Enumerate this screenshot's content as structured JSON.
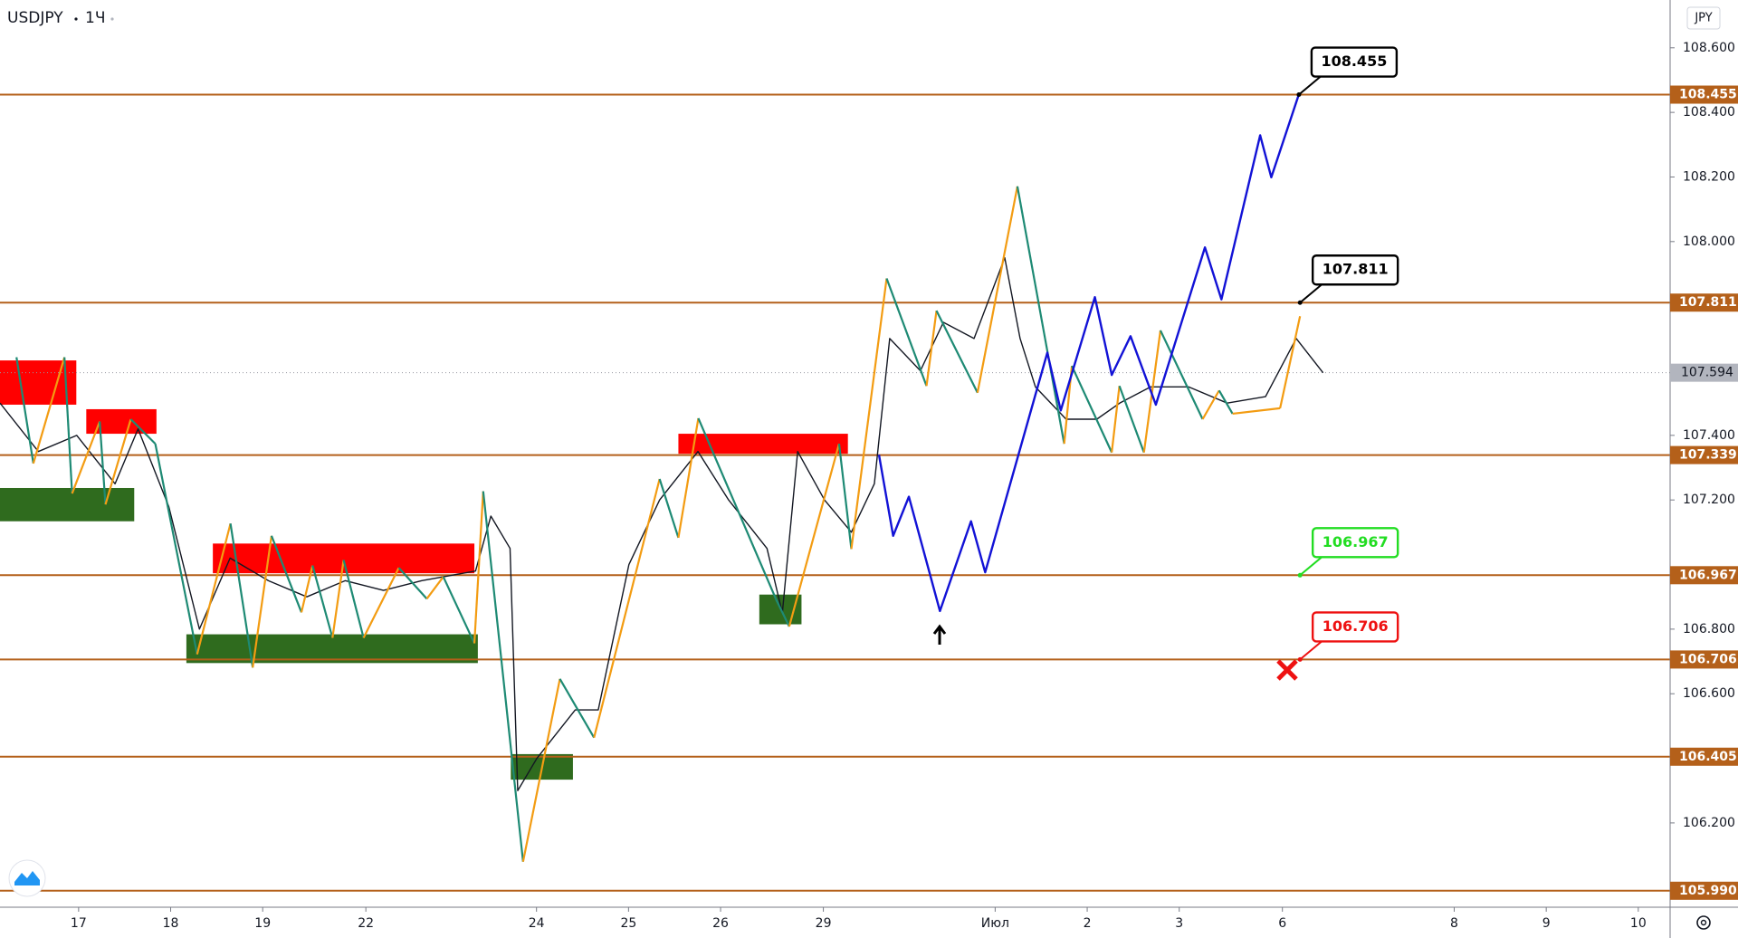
{
  "chart_data": {
    "type": "line",
    "title": "USDJPY",
    "interval": "1Ч",
    "currency": "JPY",
    "xlim": [
      0,
      435.5
    ],
    "ylim": [
      105.939,
      108.748
    ],
    "yticks": [
      {
        "value": 108.6,
        "label": "108.600"
      },
      {
        "value": 108.4,
        "label": "108.400"
      },
      {
        "value": 108.2,
        "label": "108.200"
      },
      {
        "value": 108.0,
        "label": "108.000"
      },
      {
        "value": 107.4,
        "label": "107.400"
      },
      {
        "value": 107.2,
        "label": "107.200"
      },
      {
        "value": 106.8,
        "label": "106.800"
      },
      {
        "value": 106.6,
        "label": "106.600"
      },
      {
        "value": 106.2,
        "label": "106.200"
      }
    ],
    "xticks": [
      {
        "value": 20.5,
        "label": "17"
      },
      {
        "value": 44.5,
        "label": "18"
      },
      {
        "value": 68.5,
        "label": "19"
      },
      {
        "value": 95.4,
        "label": "22"
      },
      {
        "value": 139.9,
        "label": "24"
      },
      {
        "value": 163.9,
        "label": "25"
      },
      {
        "value": 187.9,
        "label": "26"
      },
      {
        "value": 214.7,
        "label": "29"
      },
      {
        "value": 259.5,
        "label": "Июл"
      },
      {
        "value": 283.5,
        "label": "2"
      },
      {
        "value": 307.5,
        "label": "3"
      },
      {
        "value": 334.4,
        "label": "6"
      },
      {
        "value": 379.2,
        "label": "8"
      },
      {
        "value": 403.2,
        "label": "9"
      },
      {
        "value": 427.2,
        "label": "10"
      }
    ],
    "series": [
      {
        "color": "#131722",
        "x": [
          0,
          10,
          20,
          30,
          36,
          44,
          52,
          60,
          70,
          80,
          90,
          100,
          110,
          124,
          128,
          133,
          135,
          140,
          150,
          156,
          164,
          172,
          182,
          190,
          200,
          204,
          208,
          215,
          222,
          228,
          232,
          240,
          246,
          254,
          262,
          266,
          270,
          278,
          286,
          292,
          300,
          310,
          320,
          330,
          338,
          345
        ],
        "values": [
          107.5,
          107.35,
          107.4,
          107.25,
          107.42,
          107.18,
          106.8,
          107.02,
          106.95,
          106.9,
          106.95,
          106.92,
          106.95,
          106.98,
          107.15,
          107.05,
          106.3,
          106.4,
          106.55,
          106.55,
          107.0,
          107.2,
          107.35,
          107.2,
          107.05,
          106.85,
          107.35,
          107.2,
          107.1,
          107.25,
          107.7,
          107.6,
          107.75,
          107.7,
          107.95,
          107.7,
          107.55,
          107.45,
          107.45,
          107.5,
          107.55,
          107.55,
          107.5,
          107.52,
          107.7,
          107.594
        ]
      }
    ],
    "zigzag": {
      "up_color": "#f39c12",
      "down_color": "#1e8a74",
      "x": [
        4.3,
        8.7,
        16.8,
        18.8,
        26.0,
        27.5,
        34.1,
        40.5,
        51.4,
        60.1,
        65.9,
        70.8,
        78.6,
        81.5,
        86.7,
        89.6,
        94.8,
        104.0,
        111.3,
        115.6,
        123.7,
        126.0,
        136.4,
        146.0,
        154.9,
        172.0,
        176.9,
        182.1,
        202.3,
        205.8,
        218.8,
        222.0,
        231.2,
        241.6,
        244.2,
        254.9,
        265.3,
        277.5,
        279.5,
        289.9,
        291.9,
        298.3,
        302.6,
        313.6,
        317.9,
        321.4,
        333.8,
        339.0
      ],
      "values": [
        107.642,
        107.313,
        107.642,
        107.22,
        107.443,
        107.186,
        107.45,
        107.374,
        106.722,
        107.127,
        106.681,
        107.089,
        106.852,
        106.997,
        106.773,
        107.014,
        106.773,
        106.99,
        106.894,
        106.962,
        106.756,
        107.227,
        106.08,
        106.646,
        106.464,
        107.265,
        107.083,
        107.453,
        106.894,
        106.808,
        107.374,
        107.048,
        107.886,
        107.553,
        107.786,
        107.532,
        108.171,
        107.374,
        107.615,
        107.347,
        107.553,
        107.347,
        107.725,
        107.45,
        107.539,
        107.467,
        107.484,
        107.769
      ]
    },
    "projection": {
      "color": "#1212d6",
      "x": [
        229.2,
        232.9,
        237.0,
        245.1,
        253.2,
        256.9,
        273.1,
        276.6,
        285.5,
        289.9,
        294.8,
        301.4,
        314.2,
        318.5,
        328.6,
        331.5,
        338.7
      ],
      "values": [
        107.34,
        107.089,
        107.21,
        106.856,
        107.134,
        106.976,
        107.656,
        107.477,
        107.828,
        107.587,
        107.707,
        107.495,
        107.982,
        107.821,
        108.329,
        108.199,
        108.456
      ]
    },
    "zones": [
      {
        "x": [
          0,
          19.9
        ],
        "values": [
          107.632,
          107.495
        ],
        "color": "#ff0000"
      },
      {
        "x": [
          22.5,
          40.8
        ],
        "values": [
          107.481,
          107.405
        ],
        "color": "#ff0000"
      },
      {
        "x": [
          0,
          35.0
        ],
        "values": [
          107.237,
          107.134
        ],
        "color": "#2f6b1e"
      },
      {
        "x": [
          55.5,
          123.7
        ],
        "values": [
          107.065,
          106.973
        ],
        "color": "#ff0000"
      },
      {
        "x": [
          48.6,
          124.6
        ],
        "values": [
          106.784,
          106.695
        ],
        "color": "#2f6b1e"
      },
      {
        "x": [
          133.2,
          149.4
        ],
        "values": [
          106.413,
          106.334
        ],
        "color": "#2f6b1e"
      },
      {
        "x": [
          176.9,
          221.1
        ],
        "values": [
          107.405,
          107.343
        ],
        "color": "#ff0000"
      },
      {
        "x": [
          198.0,
          209.0
        ],
        "values": [
          106.907,
          106.815
        ],
        "color": "#2f6b1e"
      }
    ],
    "levels": {
      "color": "#b4601a",
      "values": [
        108.455,
        107.811,
        107.339,
        106.967,
        106.706,
        106.405,
        {
          "value": 105.99,
          "label": "105.990"
        }
      ]
    },
    "last_price": {
      "value": 107.594,
      "color": "#b2b5be"
    },
    "callouts": [
      {
        "value": 108.455,
        "x": 338.7,
        "color": "#000000"
      },
      {
        "value": 107.811,
        "x": 339.0,
        "color": "#000000"
      },
      {
        "value": 106.967,
        "x": 339.0,
        "color": "#22dd22"
      },
      {
        "value": 106.706,
        "x": 339.0,
        "color": "#ee1111"
      }
    ]
  }
}
